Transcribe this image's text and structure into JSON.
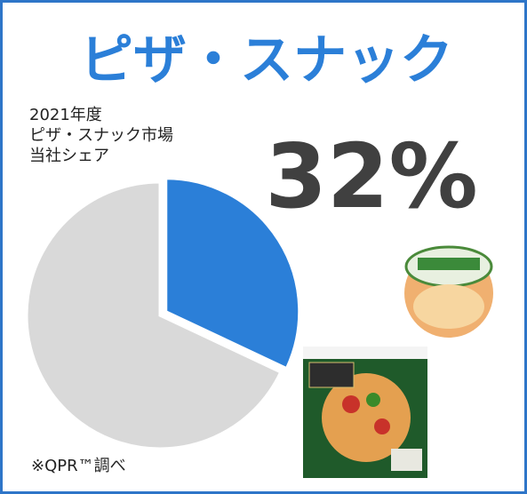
{
  "chart_data": {
    "type": "pie",
    "title": "ピザ・スナック",
    "subtitle": [
      "2021年度",
      "ピザ・スナック市場",
      "当社シェア"
    ],
    "values": [
      32,
      68
    ],
    "value_labels": [
      "32%",
      null
    ],
    "colors": [
      "#2b7fd8",
      "#d9d9d9"
    ],
    "note": "※QPR™調べ"
  }
}
